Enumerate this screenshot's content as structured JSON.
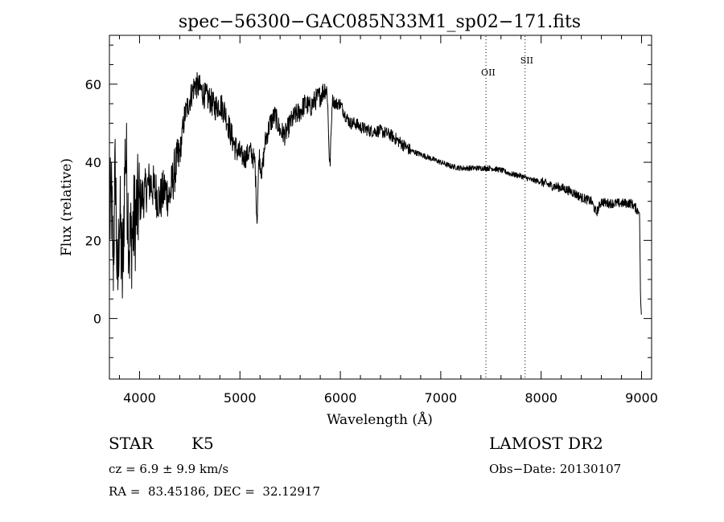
{
  "chart_data": {
    "type": "line",
    "title": "spec−56300−GAC085N33M1_sp02−171.fits",
    "xlabel": "Wavelength (Å)",
    "ylabel": "Flux (relative)",
    "xlim": [
      3700,
      9100
    ],
    "ylim": [
      -15.5,
      72.5
    ],
    "x_ticks": [
      4000,
      5000,
      6000,
      7000,
      8000,
      9000
    ],
    "y_ticks": [
      0,
      20,
      40,
      60
    ],
    "grid": false,
    "series": [
      {
        "x": [
          3700,
          3720,
          3740,
          3760,
          3780,
          3800,
          3830,
          3860,
          3900,
          3950,
          4000,
          4050,
          4100,
          4150,
          4200,
          4250,
          4300,
          4350,
          4400,
          4450,
          4500,
          4550,
          4600,
          4650,
          4700,
          4750,
          4800,
          4850,
          4900,
          4950,
          5000,
          5050,
          5100,
          5150,
          5170,
          5190,
          5220,
          5250,
          5300,
          5350,
          5400,
          5450,
          5500,
          5550,
          5600,
          5650,
          5700,
          5750,
          5800,
          5850,
          5870,
          5895,
          5920,
          5950,
          6000,
          6050,
          6100,
          6150,
          6200,
          6300,
          6400,
          6500,
          6600,
          6700,
          6800,
          6900,
          7000,
          7100,
          7200,
          7300,
          7400,
          7500,
          7600,
          7700,
          7800,
          7900,
          8000,
          8100,
          8200,
          8300,
          8400,
          8500,
          8550,
          8600,
          8650,
          8700,
          8800,
          8900,
          8950,
          8980,
          8990,
          9000
        ],
        "y": [
          25,
          30,
          15,
          40,
          5,
          28,
          10,
          45,
          18,
          25,
          30,
          32,
          35,
          33,
          30,
          33,
          31,
          38,
          42,
          52,
          56,
          60,
          59,
          57,
          56,
          54,
          55,
          53,
          48,
          44,
          42,
          41,
          43,
          40,
          25,
          42,
          37,
          45,
          50,
          52,
          48,
          47,
          50,
          52,
          53,
          55,
          54,
          56,
          57,
          59,
          58,
          38,
          56,
          55,
          55,
          52,
          50,
          50,
          49,
          48,
          48,
          47,
          45,
          43,
          42,
          41,
          40,
          39,
          38.5,
          38.5,
          38.5,
          38.5,
          38,
          37,
          36.5,
          35.5,
          35,
          34,
          33.5,
          32.5,
          31,
          30,
          27,
          30,
          29.5,
          29.5,
          29.5,
          29.5,
          28,
          27,
          5,
          0
        ]
      }
    ],
    "annotations": [
      {
        "label": "OII",
        "x": 7450
      },
      {
        "label": "SII",
        "x": 7840
      }
    ]
  },
  "info": {
    "class": "STAR",
    "subclass": "K5",
    "survey": "LAMOST DR2",
    "cz": "cz = 6.9 ± 9.9 km/s",
    "obs_date": "Obs−Date: 20130107",
    "coords": "RA =  83.45186, DEC =  32.12917"
  }
}
